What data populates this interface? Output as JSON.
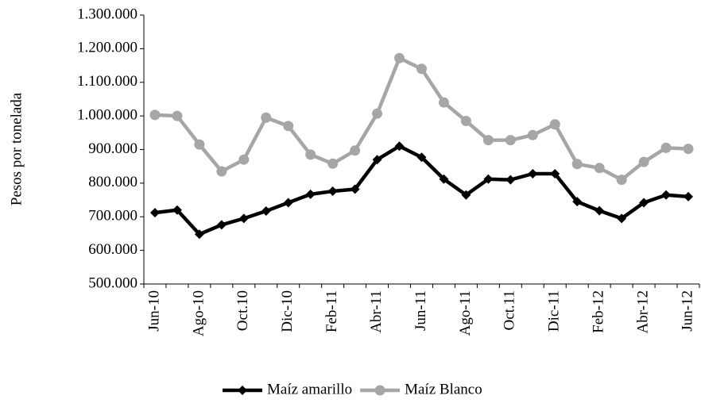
{
  "chart_data": {
    "type": "line",
    "y_label": "Pesos por tonelada",
    "categories": [
      "Jun-10",
      null,
      "Ago-10",
      null,
      "Oct.10",
      null,
      "Dic-10",
      null,
      "Feb-11",
      null,
      "Abr-11",
      null,
      "Jun-11",
      null,
      "Ago-11",
      null,
      "Oct.11",
      null,
      "Dic-11",
      null,
      "Feb-12",
      null,
      "Abr-12",
      null,
      "Jun-12"
    ],
    "series": [
      {
        "name": "Maíz amarillo",
        "color": "#000000",
        "marker": "diamond",
        "values": [
          712000,
          720000,
          648000,
          676000,
          695000,
          717000,
          742000,
          767000,
          776000,
          782000,
          870000,
          910000,
          877000,
          812000,
          765000,
          812000,
          810000,
          828000,
          828000,
          745000,
          718000,
          695000,
          742000,
          765000,
          760000
        ]
      },
      {
        "name": "Maíz Blanco",
        "color": "#a6a6a6",
        "marker": "circle",
        "values": [
          1003000,
          1000000,
          915000,
          835000,
          870000,
          995000,
          970000,
          885000,
          858000,
          897000,
          1007000,
          1172000,
          1140000,
          1040000,
          985000,
          928000,
          928000,
          943000,
          975000,
          857000,
          845000,
          810000,
          863000,
          905000,
          902000
        ]
      }
    ],
    "ylim": [
      500000,
      1300000
    ],
    "yticks": [
      {
        "value": 500000,
        "label": "500.000"
      },
      {
        "value": 600000,
        "label": "600.000"
      },
      {
        "value": 700000,
        "label": "700.000"
      },
      {
        "value": 800000,
        "label": "800.000"
      },
      {
        "value": 900000,
        "label": "900.000"
      },
      {
        "value": 1000000,
        "label": "1.000.000"
      },
      {
        "value": 1100000,
        "label": "1.100.000"
      },
      {
        "value": 1200000,
        "label": "1.200.000"
      },
      {
        "value": 1300000,
        "label": "1.300.000"
      }
    ],
    "grid": false,
    "legend": "bottom"
  }
}
